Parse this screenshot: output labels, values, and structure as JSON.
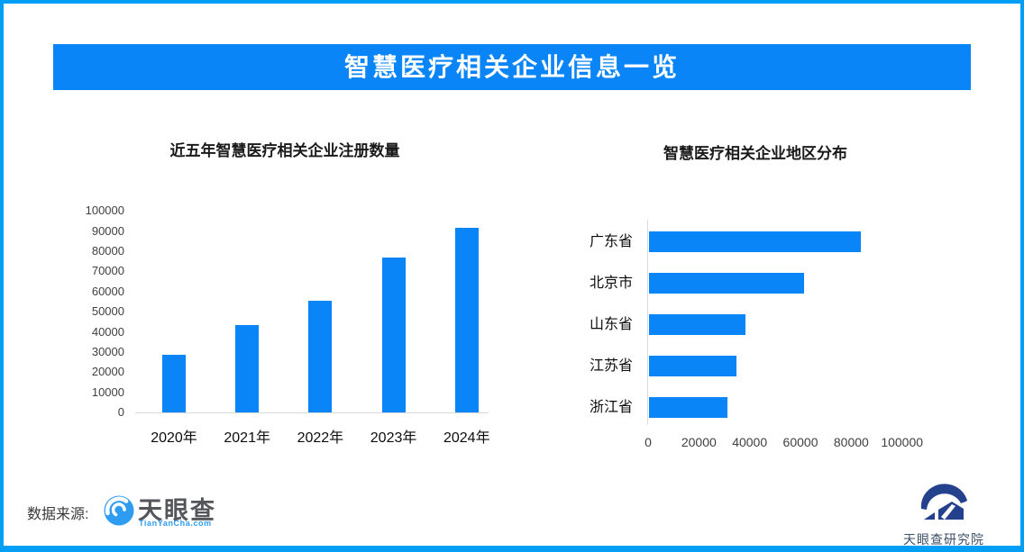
{
  "banner": {
    "title": "智慧医疗相关企业信息一览"
  },
  "colors": {
    "brand_blue": "#0a85f7",
    "border_blue": "#019ef6",
    "axis_gray": "#d9d9d9",
    "tyc_icon_blue": "#2e9cf1",
    "institute_navy": "#24418e"
  },
  "chart_data": [
    {
      "type": "bar",
      "title": "近五年智慧医疗相关企业注册数量",
      "categories": [
        "2020年",
        "2021年",
        "2022年",
        "2023年",
        "2024年"
      ],
      "values": [
        28500,
        43500,
        55500,
        77000,
        91500
      ],
      "xlabel": "",
      "ylabel": "",
      "ylim": [
        0,
        100000
      ],
      "yticks": [
        0,
        10000,
        20000,
        30000,
        40000,
        50000,
        60000,
        70000,
        80000,
        90000,
        100000
      ],
      "grid": false,
      "legend": "none",
      "bar_color": "#0a85f7"
    },
    {
      "type": "bar",
      "orientation": "horizontal",
      "title": "智慧医疗相关企业地区分布",
      "categories": [
        "广东省",
        "北京市",
        "山东省",
        "江苏省",
        "浙江省"
      ],
      "values": [
        83500,
        61000,
        38000,
        34500,
        31000
      ],
      "xlabel": "",
      "ylabel": "",
      "xlim": [
        0,
        100000
      ],
      "xticks": [
        0,
        20000,
        40000,
        60000,
        80000,
        100000
      ],
      "grid": false,
      "legend": "none",
      "bar_color": "#0a85f7"
    }
  ],
  "footer": {
    "source_label": "数据来源:",
    "tyc_wordmark": "天眼查",
    "tyc_subtext": "TianYanCha.com",
    "institute_label": "天眼查研究院"
  }
}
